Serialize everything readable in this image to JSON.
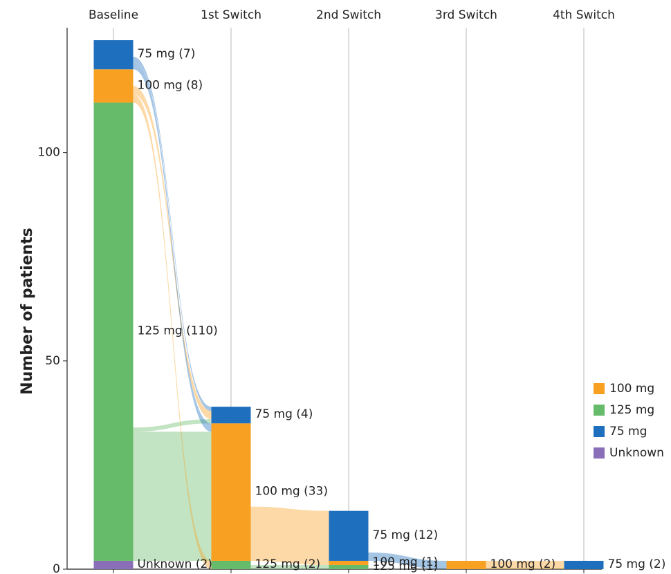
{
  "chart_data": {
    "type": "alluvial",
    "y_label": "Number of patients",
    "ylim": [
      0,
      130
    ],
    "yticks": [
      0,
      50,
      100
    ],
    "stages": [
      "Baseline",
      "1st Switch",
      "2nd Switch",
      "3rd Switch",
      "4th Switch"
    ],
    "categories": [
      {
        "name": "100 mg",
        "color": "#f7a021"
      },
      {
        "name": "125 mg",
        "color": "#66bb6a"
      },
      {
        "name": "75 mg",
        "color": "#1f6fbf"
      },
      {
        "name": "Unknown",
        "color": "#8a6fb8"
      }
    ],
    "nodes": [
      {
        "stage": 0,
        "category": 3,
        "value": 2,
        "label": "Unknown (2)"
      },
      {
        "stage": 0,
        "category": 1,
        "value": 110,
        "label": "125 mg (110)"
      },
      {
        "stage": 0,
        "category": 0,
        "value": 8,
        "label": "100 mg (8)"
      },
      {
        "stage": 0,
        "category": 2,
        "value": 7,
        "label": "75 mg (7)"
      },
      {
        "stage": 1,
        "category": 1,
        "value": 2,
        "label": "125 mg (2)"
      },
      {
        "stage": 1,
        "category": 0,
        "value": 33,
        "label": "100 mg (33)"
      },
      {
        "stage": 1,
        "category": 2,
        "value": 4,
        "label": "75 mg (4)"
      },
      {
        "stage": 2,
        "category": 1,
        "value": 1,
        "label": "125 mg (1)"
      },
      {
        "stage": 2,
        "category": 0,
        "value": 1,
        "label": "100 mg (1)"
      },
      {
        "stage": 2,
        "category": 2,
        "value": 12,
        "label": "75 mg (12)"
      },
      {
        "stage": 3,
        "category": 0,
        "value": 2,
        "label": "100 mg (2)"
      },
      {
        "stage": 4,
        "category": 2,
        "value": 2,
        "label": "75 mg (2)"
      }
    ],
    "flows": [
      {
        "source": 1,
        "target": 5,
        "value": 31
      },
      {
        "source": 1,
        "target": 6,
        "value": 1
      },
      {
        "source": 2,
        "target": 4,
        "value": 2
      },
      {
        "source": 2,
        "target": 6,
        "value": 2
      },
      {
        "source": 3,
        "target": 5,
        "value": 2
      },
      {
        "source": 3,
        "target": 6,
        "value": 1
      },
      {
        "source": 4,
        "target": 7,
        "value": 1
      },
      {
        "source": 5,
        "target": 8,
        "value": 1
      },
      {
        "source": 5,
        "target": 9,
        "value": 12
      },
      {
        "source": 9,
        "target": 10,
        "value": 2
      },
      {
        "source": 10,
        "target": 11,
        "value": 2
      }
    ]
  }
}
